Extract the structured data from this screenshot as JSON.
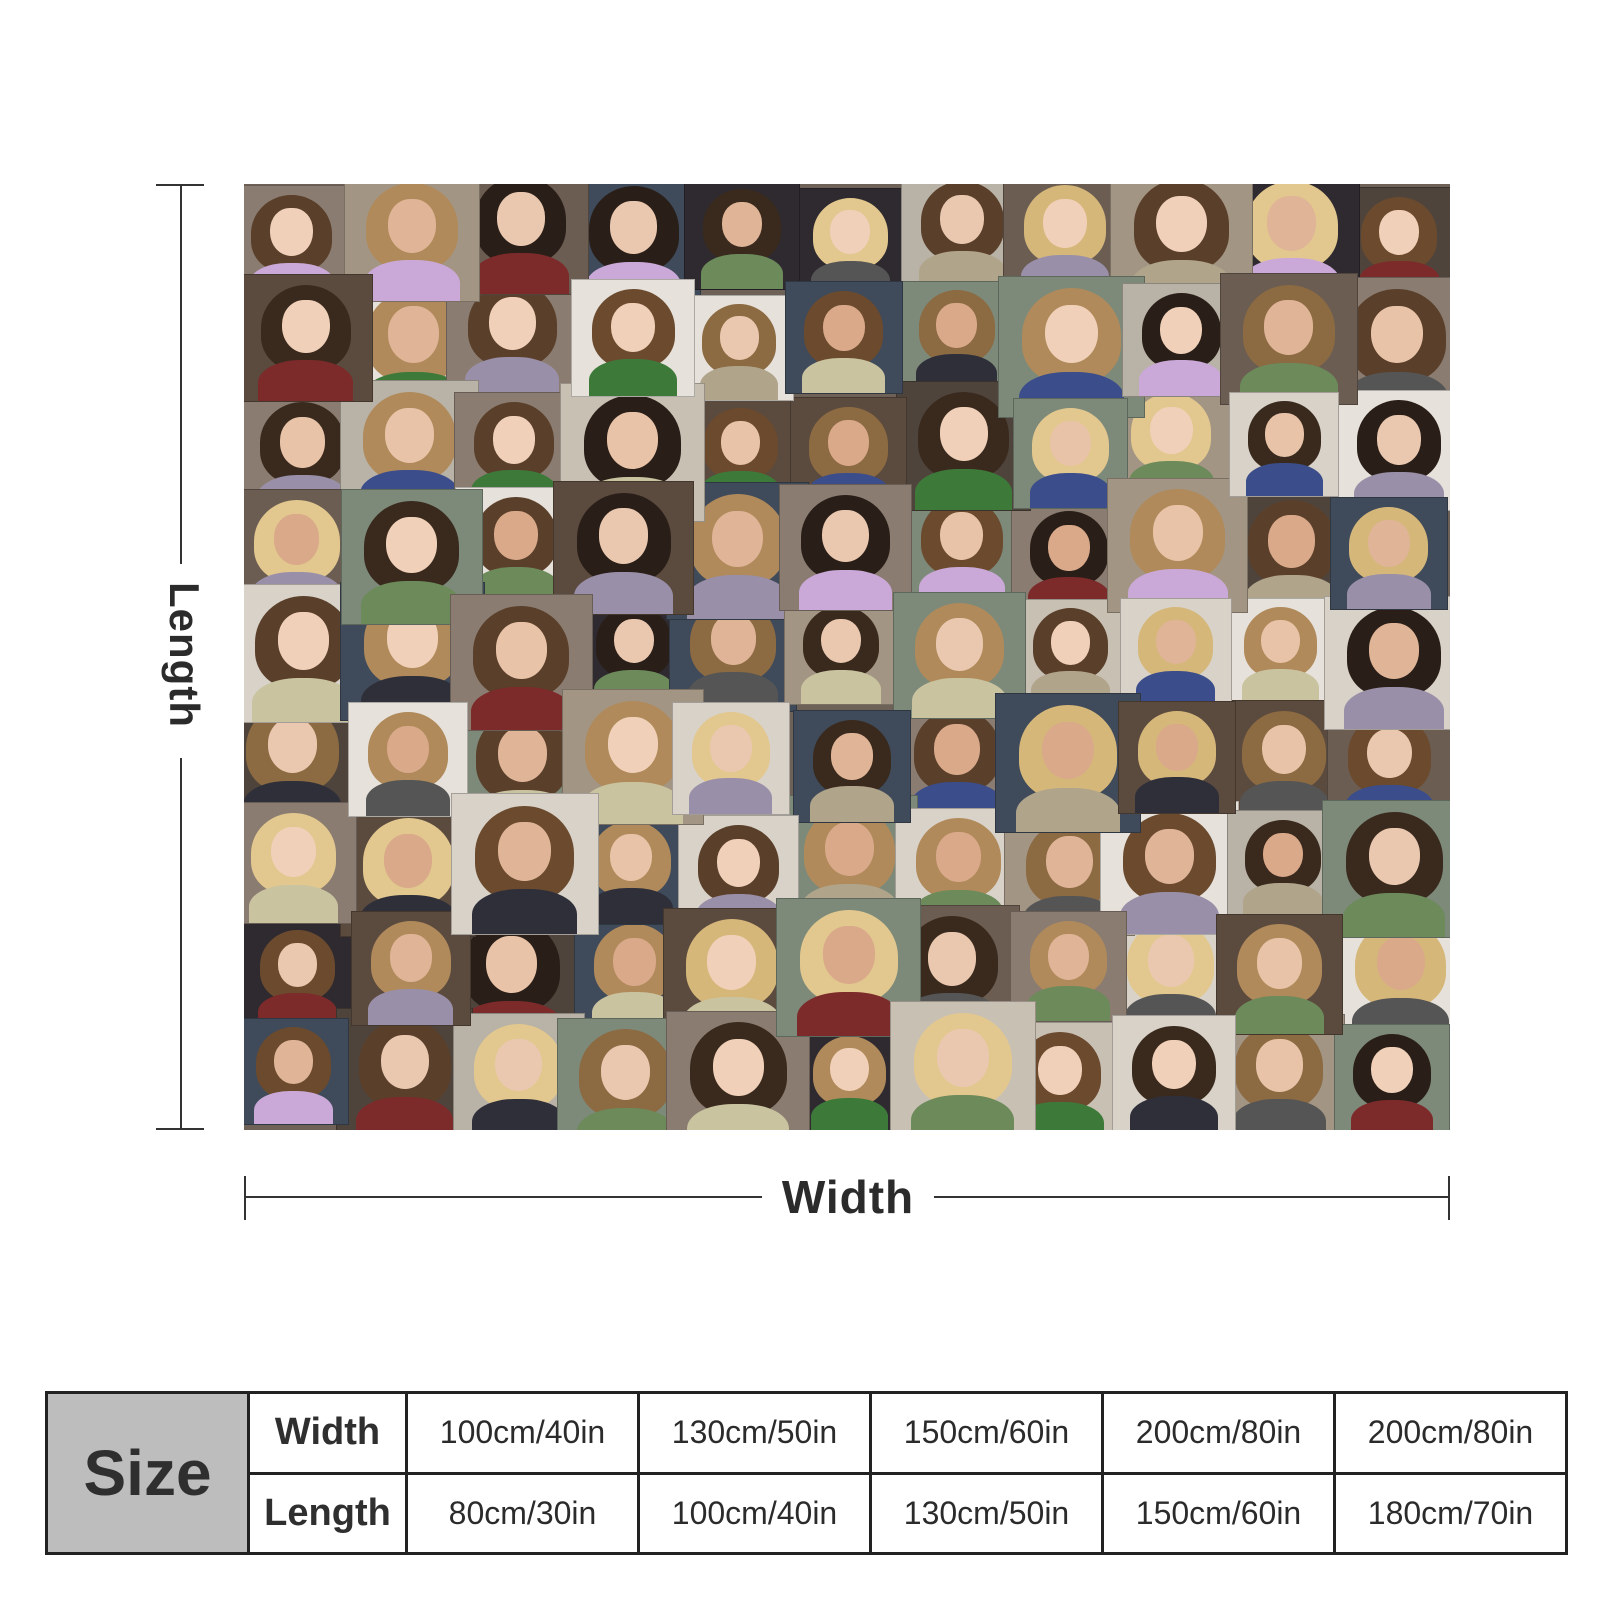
{
  "dimensions": {
    "length_label": "Length",
    "width_label": "Width"
  },
  "size_table": {
    "header": "Size",
    "width_label": "Width",
    "length_label": "Length",
    "widths": [
      "100cm/40in",
      "130cm/50in",
      "150cm/60in",
      "200cm/80in",
      "200cm/80in"
    ],
    "lengths": [
      "80cm/30in",
      "100cm/40in",
      "130cm/50in",
      "150cm/60in",
      "180cm/70in"
    ]
  }
}
